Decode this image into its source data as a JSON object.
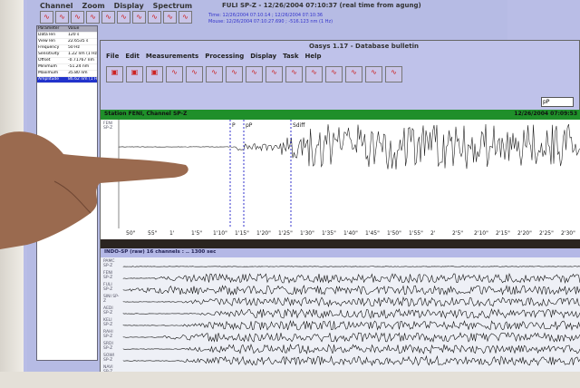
{
  "main_window": {
    "title": "FULI SP-Z - 12/26/2004 07:10:37 (real time from agung)",
    "menu": [
      "Channel",
      "Zoom",
      "Display",
      "Spectrum"
    ],
    "info_lines": [
      "Time: 12/26/2004 07:10:14 ; 12/26/2004 07:10:36",
      "Mouse: 12/26/2004 07:10:27.690 ; -516.123 nm (1 Hz)"
    ],
    "params": {
      "headers": [
        "Parameter",
        "Value"
      ],
      "rows": [
        [
          "Data len",
          "120 s"
        ],
        [
          "View len",
          "22.6535 s"
        ],
        [
          "Frequency",
          "50 Hz"
        ],
        [
          "Sensitivity",
          "1.22 nm (1 Hz)"
        ],
        [
          "Offset",
          "-0.71767 nm"
        ],
        [
          "Minimum",
          "-51.24 nm"
        ],
        [
          "Maximum",
          "35.80 nm"
        ],
        [
          "Amplitude",
          "86.62 nm (1 Hz)"
        ]
      ],
      "selected_row": 7
    }
  },
  "bulletin_window": {
    "title": "Oasys 1.17 - Database bulletin",
    "menu": [
      "File",
      "Edit",
      "Measurements",
      "Processing",
      "Display",
      "Task",
      "Help"
    ],
    "station_bar": "Station FENI, Channel SP-Z",
    "trace_label": "FENI SP-Z",
    "phase_select": "pP",
    "timestamp": "12/26/2004 07:09:53",
    "picks": [
      "P",
      "pP",
      "Sdiff"
    ],
    "ticks": [
      "50\"",
      "55\"",
      "1'",
      "1'5\"",
      "1'10\"",
      "1'15\"",
      "1'20\"",
      "1'25\"",
      "1'30\"",
      "1'35\"",
      "1'40\"",
      "1'45\"",
      "1'50\"",
      "1'55\"",
      "2'",
      "2'5\"",
      "2'10\"",
      "2'15\"",
      "2'20\"",
      "2'25\"",
      "2'30\"",
      "2'35\""
    ]
  },
  "multi_window": {
    "title": "INDO-SP (raw) 16 channels : .. 1300 sec",
    "channels": [
      "PAMC SP-Z",
      "FENI SP-Z",
      "FULI SP-Z",
      "SINI SP-Z",
      "AEDI SP-Z",
      "KELI SP-Z",
      "RAHI SP-Z",
      "SRDI SP-Z",
      "SOWI SP-Z",
      "NAVI SP-Z"
    ]
  }
}
